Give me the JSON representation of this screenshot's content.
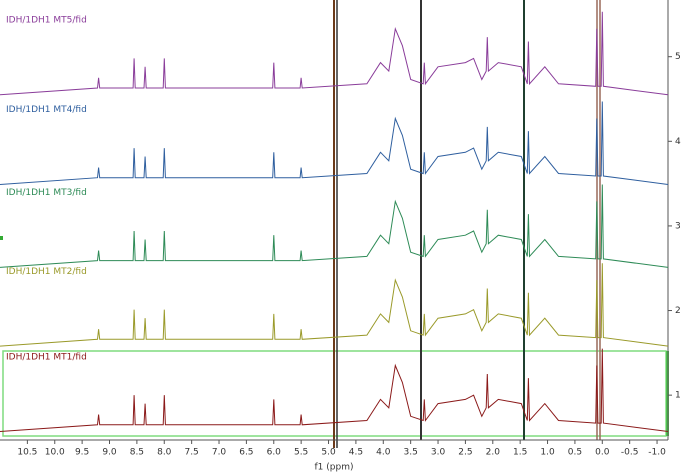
{
  "chart_data": {
    "type": "line",
    "x_label": "f1 (ppm)",
    "xlim": [
      11.0,
      -1.2
    ],
    "ylim": [
      0.47,
      5.67
    ],
    "xticks": [
      10.5,
      {
        "value": 10,
        "label": "10.0"
      },
      9.5,
      {
        "value": 9,
        "label": "9.0"
      },
      8.5,
      {
        "value": 8,
        "label": "8.0"
      },
      7.5,
      {
        "value": 7,
        "label": "7.0"
      },
      6.5,
      {
        "value": 6,
        "label": "6.0"
      },
      5.5,
      {
        "value": 5,
        "label": "5.0"
      },
      4.5,
      {
        "value": 4,
        "label": "4.0"
      },
      3.5,
      {
        "value": 3,
        "label": "3.0"
      },
      2.5,
      {
        "value": 2,
        "label": "2.0"
      },
      1.5,
      {
        "value": 1,
        "label": "1.0"
      },
      0.5,
      {
        "value": 0,
        "label": "0.0"
      },
      -0.5,
      {
        "value": -1,
        "label": "-1.0"
      }
    ],
    "yticks": [
      1,
      2,
      3,
      4,
      5
    ],
    "x": [
      11.0,
      9.22,
      9.2,
      9.18,
      8.57,
      8.55,
      8.53,
      8.37,
      8.35,
      8.33,
      8.02,
      8.0,
      7.98,
      6.02,
      6.0,
      5.98,
      5.52,
      5.5,
      5.48,
      4.3,
      4.05,
      3.9,
      3.78,
      3.65,
      3.5,
      3.27,
      3.25,
      3.23,
      3.0,
      2.5,
      2.35,
      2.2,
      2.12,
      2.1,
      2.08,
      1.9,
      1.48,
      1.37,
      1.35,
      1.33,
      1.05,
      0.8,
      0.12,
      0.1,
      0.08,
      0.02,
      0.0,
      -0.02,
      -1.2
    ],
    "series": [
      {
        "name": "IDH/1DH1 MT1/fid",
        "color": "#8b1a1a",
        "values": [
          0.57,
          0.65,
          0.77,
          0.65,
          0.65,
          1.0,
          0.65,
          0.65,
          0.9,
          0.65,
          0.65,
          1.0,
          0.65,
          0.65,
          0.95,
          0.65,
          0.65,
          0.77,
          0.65,
          0.7,
          0.95,
          0.85,
          1.35,
          1.15,
          0.75,
          0.7,
          0.95,
          0.7,
          0.9,
          0.95,
          1.0,
          0.75,
          0.85,
          1.25,
          0.85,
          0.95,
          0.9,
          0.7,
          1.2,
          0.7,
          0.9,
          0.7,
          0.67,
          1.35,
          0.67,
          0.67,
          1.55,
          0.67,
          0.57
        ]
      },
      {
        "name": "IDH/1DH1 MT2/fid",
        "color": "#9a9a2a",
        "values": [
          1.58,
          1.66,
          1.78,
          1.66,
          1.66,
          2.01,
          1.66,
          1.66,
          1.91,
          1.66,
          1.66,
          2.01,
          1.66,
          1.66,
          1.96,
          1.66,
          1.66,
          1.78,
          1.66,
          1.71,
          1.96,
          1.86,
          2.36,
          2.16,
          1.76,
          1.71,
          1.96,
          1.71,
          1.91,
          1.96,
          2.01,
          1.76,
          1.86,
          2.26,
          1.86,
          1.96,
          1.91,
          1.71,
          2.21,
          1.71,
          1.91,
          1.71,
          1.68,
          2.36,
          1.68,
          1.68,
          2.56,
          1.68,
          1.58
        ]
      },
      {
        "name": "IDH/1DH1 MT3/fid",
        "color": "#2e8b57",
        "values": [
          2.51,
          2.59,
          2.71,
          2.59,
          2.59,
          2.94,
          2.59,
          2.59,
          2.84,
          2.59,
          2.59,
          2.94,
          2.59,
          2.59,
          2.89,
          2.59,
          2.59,
          2.71,
          2.59,
          2.64,
          2.89,
          2.79,
          3.29,
          3.09,
          2.69,
          2.64,
          2.89,
          2.64,
          2.84,
          2.89,
          2.94,
          2.69,
          2.79,
          3.19,
          2.79,
          2.89,
          2.84,
          2.64,
          3.14,
          2.64,
          2.84,
          2.64,
          2.61,
          3.29,
          2.61,
          2.61,
          3.49,
          2.61,
          2.51
        ]
      },
      {
        "name": "IDH/1DH1 MT4/fid",
        "color": "#2f5f9f",
        "values": [
          3.49,
          3.57,
          3.69,
          3.57,
          3.57,
          3.92,
          3.57,
          3.57,
          3.82,
          3.57,
          3.57,
          3.92,
          3.57,
          3.57,
          3.87,
          3.57,
          3.57,
          3.69,
          3.57,
          3.62,
          3.87,
          3.77,
          4.27,
          4.07,
          3.67,
          3.62,
          3.87,
          3.62,
          3.82,
          3.87,
          3.92,
          3.67,
          3.77,
          4.17,
          3.77,
          3.87,
          3.82,
          3.62,
          4.12,
          3.62,
          3.82,
          3.62,
          3.59,
          4.27,
          3.59,
          3.59,
          4.47,
          3.59,
          3.49
        ]
      },
      {
        "name": "IDH/1DH1 MT5/fid",
        "color": "#8a3d9a",
        "values": [
          4.55,
          4.63,
          4.75,
          4.63,
          4.63,
          4.98,
          4.63,
          4.63,
          4.88,
          4.63,
          4.63,
          4.98,
          4.63,
          4.63,
          4.93,
          4.63,
          4.63,
          4.75,
          4.63,
          4.68,
          4.93,
          4.83,
          5.33,
          5.13,
          4.73,
          4.68,
          4.93,
          4.68,
          4.88,
          4.93,
          4.98,
          4.73,
          4.83,
          5.23,
          4.83,
          4.93,
          4.88,
          4.68,
          5.18,
          4.68,
          4.88,
          4.68,
          4.65,
          5.33,
          4.65,
          4.65,
          5.53,
          4.65,
          4.55
        ]
      }
    ]
  }
}
